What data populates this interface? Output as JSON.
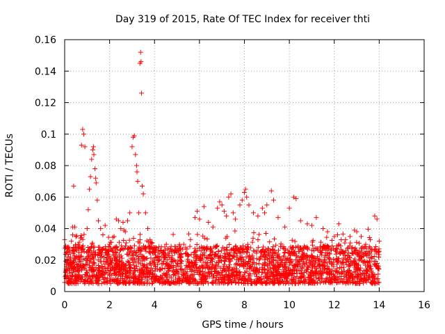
{
  "chart_data": {
    "type": "scatter",
    "title": "Day 319 of 2015, Rate Of TEC Index for receiver thti",
    "xlabel": "GPS time / hours",
    "ylabel": "ROTI / TECUs",
    "xlim": [
      0,
      16
    ],
    "ylim": [
      0,
      0.16
    ],
    "xticks": [
      "0",
      "2",
      "4",
      "6",
      "8",
      "10",
      "12",
      "14",
      "16"
    ],
    "yticks": [
      "0",
      "0.02",
      "0.04",
      "0.06",
      "0.08",
      "0.1",
      "0.12",
      "0.14",
      "0.16"
    ],
    "grid": true,
    "marker": "+",
    "color": "#ff0000",
    "series": [
      {
        "name": "ROTI",
        "note": "dense band of points (baseline ~0.005-0.035 TECU) from 0 to 14 h, with highlighted excursions listed below",
        "x_range": [
          0,
          14
        ],
        "points": [
          [
            0.0,
            0.033
          ],
          [
            0.05,
            0.029
          ],
          [
            0.1,
            0.025
          ],
          [
            0.15,
            0.022
          ],
          [
            0.2,
            0.027
          ],
          [
            0.3,
            0.032
          ],
          [
            0.35,
            0.041
          ],
          [
            0.4,
            0.067
          ],
          [
            0.45,
            0.041
          ],
          [
            0.5,
            0.035
          ],
          [
            0.6,
            0.03
          ],
          [
            0.7,
            0.034
          ],
          [
            0.75,
            0.093
          ],
          [
            0.8,
            0.103
          ],
          [
            0.85,
            0.1
          ],
          [
            0.9,
            0.092
          ],
          [
            1.0,
            0.04
          ],
          [
            1.05,
            0.052
          ],
          [
            1.1,
            0.065
          ],
          [
            1.15,
            0.073
          ],
          [
            1.2,
            0.084
          ],
          [
            1.25,
            0.09
          ],
          [
            1.28,
            0.092
          ],
          [
            1.3,
            0.087
          ],
          [
            1.35,
            0.078
          ],
          [
            1.38,
            0.072
          ],
          [
            1.4,
            0.069
          ],
          [
            1.45,
            0.058
          ],
          [
            1.5,
            0.045
          ],
          [
            1.6,
            0.04
          ],
          [
            1.7,
            0.036
          ],
          [
            1.8,
            0.042
          ],
          [
            2.0,
            0.03
          ],
          [
            2.2,
            0.035
          ],
          [
            2.3,
            0.046
          ],
          [
            2.4,
            0.045
          ],
          [
            2.5,
            0.04
          ],
          [
            2.6,
            0.044
          ],
          [
            2.7,
            0.038
          ],
          [
            2.8,
            0.045
          ],
          [
            2.9,
            0.05
          ],
          [
            3.0,
            0.092
          ],
          [
            3.05,
            0.098
          ],
          [
            3.1,
            0.099
          ],
          [
            3.15,
            0.087
          ],
          [
            3.2,
            0.08
          ],
          [
            3.22,
            0.076
          ],
          [
            3.25,
            0.07
          ],
          [
            3.3,
            0.05
          ],
          [
            3.35,
            0.145
          ],
          [
            3.38,
            0.152
          ],
          [
            3.4,
            0.146
          ],
          [
            3.42,
            0.126
          ],
          [
            3.45,
            0.067
          ],
          [
            3.5,
            0.062
          ],
          [
            3.6,
            0.05
          ],
          [
            3.7,
            0.04
          ],
          [
            3.8,
            0.033
          ],
          [
            3.9,
            0.031
          ],
          [
            4.0,
            0.025
          ],
          [
            4.3,
            0.026
          ],
          [
            4.6,
            0.027
          ],
          [
            5.0,
            0.025
          ],
          [
            5.3,
            0.03
          ],
          [
            5.6,
            0.033
          ],
          [
            5.8,
            0.047
          ],
          [
            5.9,
            0.051
          ],
          [
            6.0,
            0.046
          ],
          [
            6.2,
            0.054
          ],
          [
            6.4,
            0.044
          ],
          [
            6.6,
            0.041
          ],
          [
            6.8,
            0.053
          ],
          [
            6.9,
            0.057
          ],
          [
            7.0,
            0.055
          ],
          [
            7.1,
            0.051
          ],
          [
            7.2,
            0.048
          ],
          [
            7.3,
            0.06
          ],
          [
            7.4,
            0.062
          ],
          [
            7.5,
            0.05
          ],
          [
            7.6,
            0.046
          ],
          [
            7.8,
            0.055
          ],
          [
            7.9,
            0.058
          ],
          [
            8.0,
            0.063
          ],
          [
            8.05,
            0.065
          ],
          [
            8.1,
            0.06
          ],
          [
            8.2,
            0.055
          ],
          [
            8.4,
            0.05
          ],
          [
            8.6,
            0.048
          ],
          [
            8.8,
            0.053
          ],
          [
            8.9,
            0.05
          ],
          [
            9.0,
            0.055
          ],
          [
            9.2,
            0.064
          ],
          [
            9.3,
            0.058
          ],
          [
            9.5,
            0.047
          ],
          [
            9.8,
            0.041
          ],
          [
            10.0,
            0.053
          ],
          [
            10.2,
            0.06
          ],
          [
            10.3,
            0.059
          ],
          [
            10.5,
            0.045
          ],
          [
            10.8,
            0.043
          ],
          [
            11.0,
            0.042
          ],
          [
            11.2,
            0.047
          ],
          [
            11.5,
            0.04
          ],
          [
            11.7,
            0.038
          ],
          [
            12.0,
            0.035
          ],
          [
            12.2,
            0.043
          ],
          [
            12.5,
            0.033
          ],
          [
            12.7,
            0.035
          ],
          [
            12.9,
            0.039
          ],
          [
            13.0,
            0.038
          ],
          [
            13.2,
            0.035
          ],
          [
            13.4,
            0.03
          ],
          [
            13.6,
            0.033
          ],
          [
            13.8,
            0.048
          ],
          [
            13.9,
            0.046
          ],
          [
            14.0,
            0.032
          ]
        ]
      }
    ]
  }
}
